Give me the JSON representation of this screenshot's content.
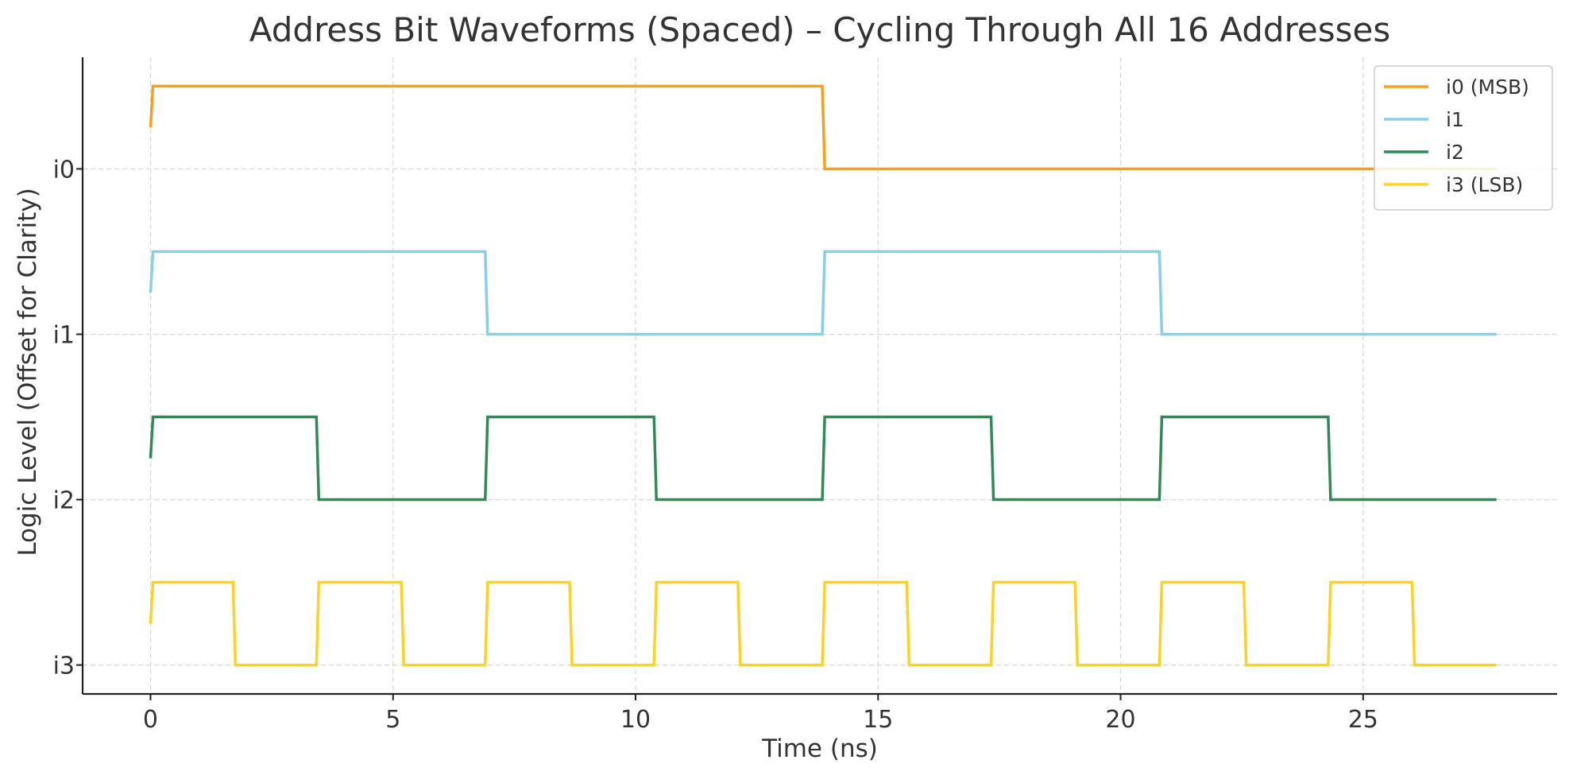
{
  "chart_data": {
    "type": "line",
    "title": "Address Bit Waveforms (Spaced) – Cycling Through All 16 Addresses",
    "xlabel": "Time (ns)",
    "ylabel": "Logic Level (Offset for Clarity)",
    "xlim": [
      -1.4,
      29
    ],
    "ylim": [
      -0.35,
      7.35
    ],
    "x_ticks": [
      0,
      5,
      10,
      15,
      20,
      25
    ],
    "y_ticks": [
      {
        "value": 0,
        "label": "i3"
      },
      {
        "value": 2,
        "label": "i2"
      },
      {
        "value": 4,
        "label": "i1"
      },
      {
        "value": 6,
        "label": "i0"
      }
    ],
    "grid": true,
    "legend_position": "top-right",
    "series": [
      {
        "name": "i0 (MSB)",
        "color": "#f5a11a",
        "points": [
          [
            0,
            6.5
          ],
          [
            0.05,
            7
          ],
          [
            13.85,
            7
          ],
          [
            13.9,
            6
          ],
          [
            27.75,
            6
          ]
        ]
      },
      {
        "name": "i1",
        "color": "#87ceeb",
        "points": [
          [
            0,
            4.5
          ],
          [
            0.05,
            5
          ],
          [
            6.9,
            5
          ],
          [
            6.95,
            4
          ],
          [
            13.85,
            4
          ],
          [
            13.9,
            5
          ],
          [
            20.8,
            5
          ],
          [
            20.85,
            4
          ],
          [
            27.75,
            4
          ]
        ]
      },
      {
        "name": "i2",
        "color": "#2e8b57",
        "points": [
          [
            0,
            2.5
          ],
          [
            0.05,
            3
          ],
          [
            3.42,
            3
          ],
          [
            3.47,
            2
          ],
          [
            6.9,
            2
          ],
          [
            6.95,
            3
          ],
          [
            10.38,
            3
          ],
          [
            10.43,
            2
          ],
          [
            13.85,
            2
          ],
          [
            13.9,
            3
          ],
          [
            17.33,
            3
          ],
          [
            17.38,
            2
          ],
          [
            20.8,
            2
          ],
          [
            20.85,
            3
          ],
          [
            24.28,
            3
          ],
          [
            24.33,
            2
          ],
          [
            27.75,
            2
          ]
        ]
      },
      {
        "name": "i3 (LSB)",
        "color": "#ffd21f",
        "points": [
          [
            0,
            0.5
          ],
          [
            0.05,
            1
          ],
          [
            1.7,
            1
          ],
          [
            1.75,
            0
          ],
          [
            3.42,
            0
          ],
          [
            3.47,
            1
          ],
          [
            5.17,
            1
          ],
          [
            5.22,
            0
          ],
          [
            6.9,
            0
          ],
          [
            6.95,
            1
          ],
          [
            8.64,
            1
          ],
          [
            8.69,
            0
          ],
          [
            10.38,
            0
          ],
          [
            10.43,
            1
          ],
          [
            12.11,
            1
          ],
          [
            12.16,
            0
          ],
          [
            13.85,
            0
          ],
          [
            13.9,
            1
          ],
          [
            15.59,
            1
          ],
          [
            15.64,
            0
          ],
          [
            17.33,
            0
          ],
          [
            17.38,
            1
          ],
          [
            19.06,
            1
          ],
          [
            19.11,
            0
          ],
          [
            20.8,
            0
          ],
          [
            20.85,
            1
          ],
          [
            22.54,
            1
          ],
          [
            22.59,
            0
          ],
          [
            24.28,
            0
          ],
          [
            24.33,
            1
          ],
          [
            26.01,
            1
          ],
          [
            26.06,
            0
          ],
          [
            27.75,
            0
          ]
        ]
      }
    ]
  }
}
